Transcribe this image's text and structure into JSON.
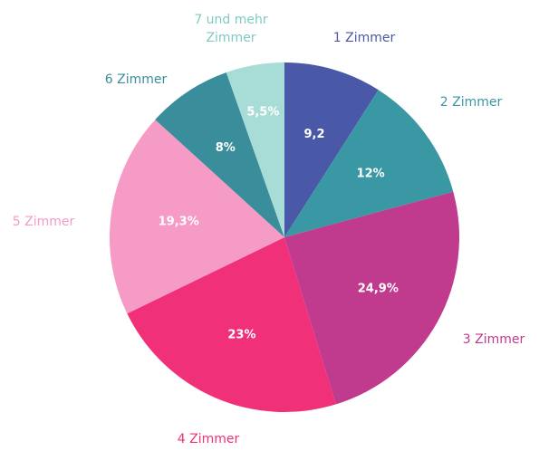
{
  "chart_data": {
    "type": "pie",
    "categories": [
      "1 Zimmer",
      "2 Zimmer",
      "3 Zimmer",
      "4 Zimmer",
      "5 Zimmer",
      "6 Zimmer",
      "7 und mehr Zimmer"
    ],
    "values": [
      9.2,
      12,
      24.9,
      23,
      19.3,
      8,
      5.5
    ],
    "value_labels": [
      "9,2",
      "12%",
      "24,9%",
      "23%",
      "19,3%",
      "8%",
      "5,5%"
    ],
    "colors": [
      "#4a58a8",
      "#3a98a4",
      "#c03a8e",
      "#f0317a",
      "#f69bc6",
      "#3a8e9b",
      "#a8ddd7"
    ]
  }
}
